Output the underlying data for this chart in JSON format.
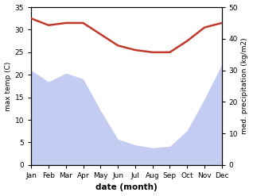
{
  "months": [
    1,
    2,
    3,
    4,
    5,
    6,
    7,
    8,
    9,
    10,
    11,
    12
  ],
  "month_labels": [
    "Jan",
    "Feb",
    "Mar",
    "Apr",
    "May",
    "Jun",
    "Jul",
    "Aug",
    "Sep",
    "Oct",
    "Nov",
    "Dec"
  ],
  "temp_max": [
    32.5,
    31.0,
    31.5,
    31.5,
    29.0,
    26.5,
    25.5,
    25.0,
    25.0,
    27.5,
    30.5,
    31.5
  ],
  "precip": [
    330,
    290,
    320,
    300,
    190,
    90,
    70,
    60,
    65,
    120,
    230,
    350
  ],
  "temp_color": "#c0392b",
  "precip_fill_color": "#b0bded",
  "precip_alpha": 0.75,
  "temp_ylim": [
    0,
    35
  ],
  "precip_ylim": [
    0,
    550
  ],
  "temp_yticks": [
    0,
    5,
    10,
    15,
    20,
    25,
    30,
    35
  ],
  "precip_yticks_vals": [
    0,
    10,
    20,
    30,
    40,
    50
  ],
  "precip_yticks_pos": [
    0,
    110,
    220,
    330,
    440,
    550
  ],
  "xlabel": "date (month)",
  "ylabel_left": "max temp (C)",
  "ylabel_right": "med. precipitation (kg/m2)"
}
